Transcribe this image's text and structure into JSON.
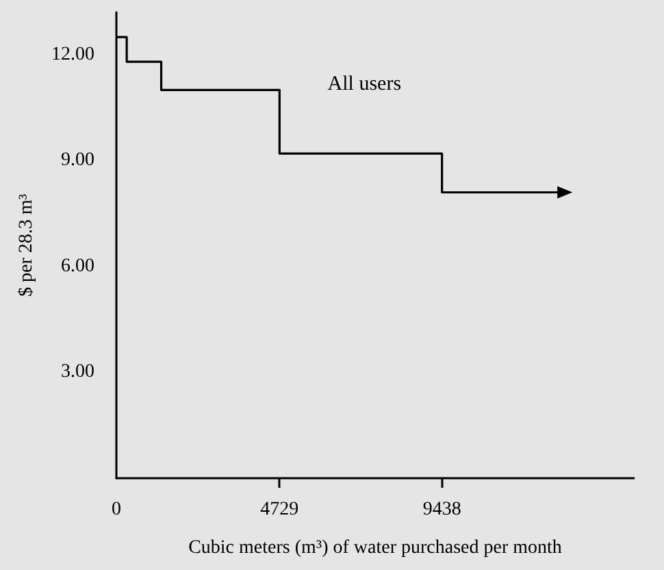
{
  "chart_data": {
    "type": "step",
    "xlabel": "Cubic meters (m³) of water purchased per month",
    "ylabel": "$ per 28.3 m³",
    "x": [
      0,
      300,
      1300,
      4729,
      9438,
      13000
    ],
    "series": [
      {
        "name": "All users",
        "color": "#000000",
        "values": [
          12.5,
          11.8,
          11.0,
          9.2,
          8.1,
          8.1
        ]
      }
    ],
    "xlim": [
      0,
      15000
    ],
    "xticks": [
      0,
      4729,
      9438
    ],
    "ylim": [
      0,
      13.2
    ],
    "yticks": [
      {
        "value": 3,
        "label": "3.00"
      },
      {
        "value": 6,
        "label": "6.00"
      },
      {
        "value": 9,
        "label": "9.00"
      },
      {
        "value": 12,
        "label": "12.00"
      }
    ],
    "grid": false,
    "legend": false
  }
}
